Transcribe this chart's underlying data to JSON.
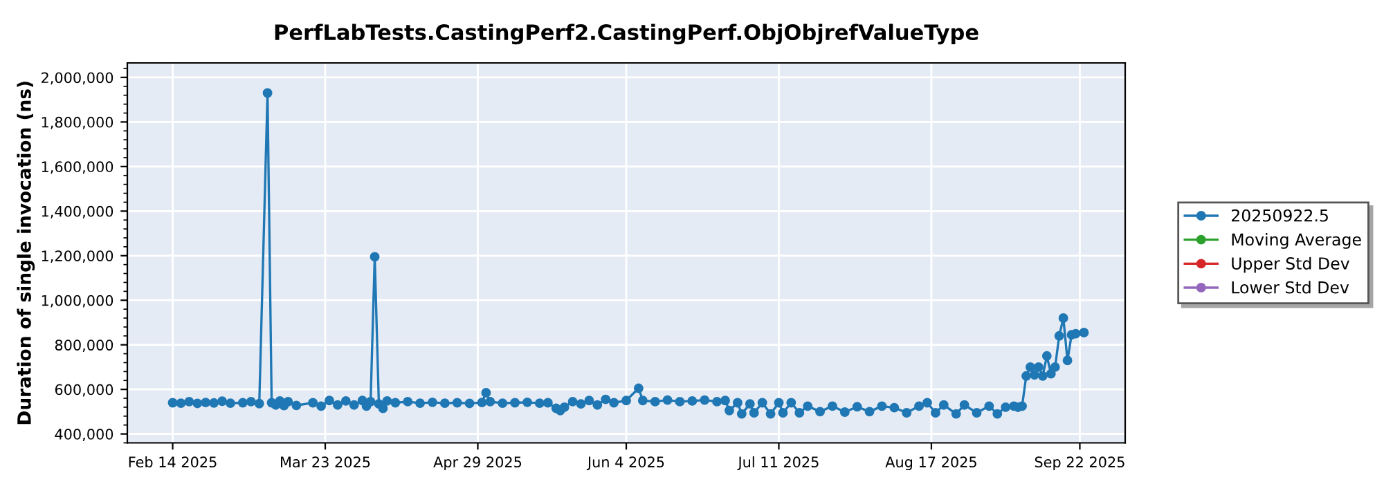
{
  "chart_data": {
    "type": "line",
    "title": "PerfLabTests.CastingPerf2.CastingPerf.ObjObjrefValueType",
    "ylabel": "Duration of single invocation (ns)",
    "xlim": [
      "2025-02-03",
      "2025-10-03"
    ],
    "xticks": [
      {
        "value": "2025-02-14",
        "label": "Feb 14 2025"
      },
      {
        "value": "2025-03-23",
        "label": "Mar 23 2025"
      },
      {
        "value": "2025-04-29",
        "label": "Apr 29 2025"
      },
      {
        "value": "2025-06-04",
        "label": "Jun 4 2025"
      },
      {
        "value": "2025-07-11",
        "label": "Jul 11 2025"
      },
      {
        "value": "2025-08-17",
        "label": "Aug 17 2025"
      },
      {
        "value": "2025-09-22",
        "label": "Sep 22 2025"
      }
    ],
    "ylim": [
      360000,
      2065000
    ],
    "yticks": [
      {
        "value": 400000,
        "label": "400,000"
      },
      {
        "value": 600000,
        "label": "600,000"
      },
      {
        "value": 800000,
        "label": "800,000"
      },
      {
        "value": 1000000,
        "label": "1,000,000"
      },
      {
        "value": 1200000,
        "label": "1,200,000"
      },
      {
        "value": 1400000,
        "label": "1,400,000"
      },
      {
        "value": 1600000,
        "label": "1,600,000"
      },
      {
        "value": 1800000,
        "label": "1,800,000"
      },
      {
        "value": 2000000,
        "label": "2,000,000"
      }
    ],
    "grid": true,
    "legend": "right",
    "marker": "circle",
    "line_style": "solid",
    "series": [
      {
        "name": "20250922.5",
        "color": "#1f77b4",
        "x": [
          "2025-02-14",
          "2025-02-16",
          "2025-02-18",
          "2025-02-20",
          "2025-02-22",
          "2025-02-24",
          "2025-02-26",
          "2025-02-28",
          "2025-03-03",
          "2025-03-05",
          "2025-03-07",
          "2025-03-09",
          "2025-03-10",
          "2025-03-11",
          "2025-03-12",
          "2025-03-13",
          "2025-03-14",
          "2025-03-16",
          "2025-03-20",
          "2025-03-22",
          "2025-03-24",
          "2025-03-26",
          "2025-03-28",
          "2025-03-30",
          "2025-04-01",
          "2025-04-02",
          "2025-04-03",
          "2025-04-04",
          "2025-04-05",
          "2025-04-06",
          "2025-04-07",
          "2025-04-09",
          "2025-04-12",
          "2025-04-15",
          "2025-04-18",
          "2025-04-21",
          "2025-04-24",
          "2025-04-27",
          "2025-04-30",
          "2025-05-01",
          "2025-05-02",
          "2025-05-05",
          "2025-05-08",
          "2025-05-11",
          "2025-05-14",
          "2025-05-16",
          "2025-05-18",
          "2025-05-19",
          "2025-05-20",
          "2025-05-22",
          "2025-05-24",
          "2025-05-26",
          "2025-05-28",
          "2025-05-30",
          "2025-06-01",
          "2025-06-04",
          "2025-06-07",
          "2025-06-08",
          "2025-06-11",
          "2025-06-14",
          "2025-06-17",
          "2025-06-20",
          "2025-06-23",
          "2025-06-26",
          "2025-06-28",
          "2025-06-29",
          "2025-07-01",
          "2025-07-02",
          "2025-07-04",
          "2025-07-05",
          "2025-07-07",
          "2025-07-09",
          "2025-07-11",
          "2025-07-12",
          "2025-07-14",
          "2025-07-16",
          "2025-07-18",
          "2025-07-21",
          "2025-07-24",
          "2025-07-27",
          "2025-07-30",
          "2025-08-02",
          "2025-08-05",
          "2025-08-08",
          "2025-08-11",
          "2025-08-14",
          "2025-08-16",
          "2025-08-18",
          "2025-08-20",
          "2025-08-23",
          "2025-08-25",
          "2025-08-28",
          "2025-08-31",
          "2025-09-02",
          "2025-09-04",
          "2025-09-06",
          "2025-09-07",
          "2025-09-08",
          "2025-09-09",
          "2025-09-10",
          "2025-09-11",
          "2025-09-12",
          "2025-09-13",
          "2025-09-14",
          "2025-09-15",
          "2025-09-16",
          "2025-09-17",
          "2025-09-18",
          "2025-09-19",
          "2025-09-20",
          "2025-09-21",
          "2025-09-23"
        ],
        "values": [
          540000,
          538000,
          545000,
          537000,
          541000,
          539000,
          547000,
          538000,
          540000,
          545000,
          536000,
          1930000,
          540000,
          530000,
          548000,
          527000,
          545000,
          528000,
          540000,
          525000,
          550000,
          530000,
          548000,
          530000,
          550000,
          525000,
          545000,
          1195000,
          535000,
          515000,
          548000,
          540000,
          545000,
          538000,
          542000,
          538000,
          540000,
          537000,
          541000,
          585000,
          545000,
          538000,
          540000,
          542000,
          538000,
          540000,
          515000,
          505000,
          520000,
          545000,
          535000,
          550000,
          530000,
          555000,
          540000,
          550000,
          605000,
          550000,
          545000,
          552000,
          545000,
          548000,
          552000,
          545000,
          550000,
          505000,
          540000,
          490000,
          535000,
          495000,
          540000,
          490000,
          540000,
          495000,
          540000,
          495000,
          525000,
          500000,
          525000,
          498000,
          522000,
          500000,
          525000,
          518000,
          495000,
          525000,
          540000,
          495000,
          530000,
          490000,
          530000,
          495000,
          525000,
          490000,
          520000,
          525000,
          520000,
          525000,
          660000,
          700000,
          665000,
          700000,
          660000,
          750000,
          670000,
          700000,
          840000,
          920000,
          730000,
          845000,
          850000,
          855000
        ]
      },
      {
        "name": "Moving Average",
        "color": "#2ca02c"
      },
      {
        "name": "Upper Std Dev",
        "color": "#d62728"
      },
      {
        "name": "Lower Std Dev",
        "color": "#9467bd"
      }
    ]
  }
}
